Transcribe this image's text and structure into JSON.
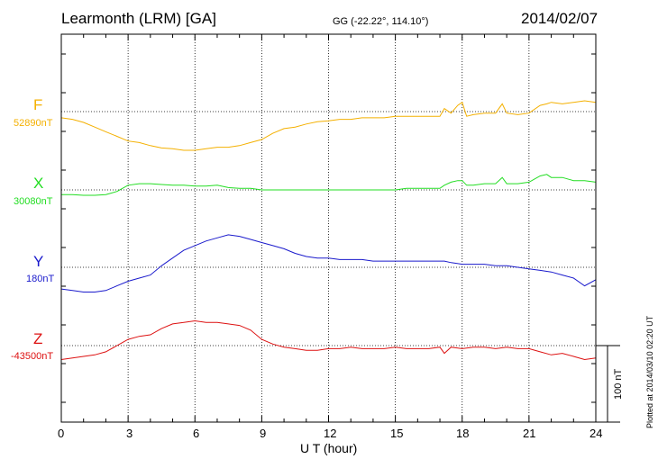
{
  "header": {
    "station": "Learmonth (LRM)  [GA]",
    "coords": "GG (-22.22°, 114.10°)",
    "date": "2014/02/07"
  },
  "footer": {
    "plotted": "Plotted at 2014/03/10 02:20 UT"
  },
  "colors": {
    "F": "#f4b000",
    "X": "#22dd22",
    "Y": "#1a1acc",
    "Z": "#dd1111",
    "axis": "#000000"
  },
  "chart_data": {
    "type": "line",
    "title": "Learmonth (LRM)  [GA]",
    "xlabel": "U T (hour)",
    "ylabel": "",
    "xlim": [
      0,
      24
    ],
    "x_ticks": [
      0,
      3,
      6,
      9,
      12,
      15,
      18,
      21,
      24
    ],
    "x_tick_labels": [
      "0",
      "3",
      "6",
      "9",
      "12",
      "15",
      "18",
      "21",
      "24"
    ],
    "grid": true,
    "scale_bar_nT": 100,
    "scale_label": "100 nT",
    "series": [
      {
        "name": "F",
        "baseline": "52890nT",
        "baseline_nT": 52890,
        "x": [
          0,
          0.5,
          1,
          1.5,
          2,
          2.5,
          3,
          3.5,
          4,
          4.5,
          5,
          5.5,
          6,
          6.5,
          7,
          7.5,
          8,
          8.5,
          9,
          9.5,
          10,
          10.5,
          11,
          11.5,
          12,
          12.5,
          13,
          13.5,
          14,
          14.5,
          15,
          15.5,
          16,
          16.5,
          17,
          17.2,
          17.5,
          17.8,
          18,
          18.2,
          18.5,
          19,
          19.5,
          19.8,
          20,
          20.5,
          21,
          21.5,
          21.8,
          22,
          22.5,
          23,
          23.5,
          24
        ],
        "y": [
          -8,
          -10,
          -14,
          -20,
          -26,
          -32,
          -38,
          -40,
          -44,
          -47,
          -48,
          -50,
          -50,
          -48,
          -46,
          -46,
          -44,
          -40,
          -36,
          -28,
          -22,
          -20,
          -16,
          -13,
          -12,
          -10,
          -10,
          -8,
          -8,
          -8,
          -6,
          -6,
          -6,
          -6,
          -6,
          4,
          -2,
          8,
          12,
          -6,
          -4,
          -2,
          -2,
          10,
          -2,
          -4,
          -2,
          8,
          10,
          12,
          10,
          12,
          14,
          12
        ]
      },
      {
        "name": "X",
        "baseline": "30080nT",
        "baseline_nT": 30080,
        "x": [
          0,
          0.5,
          1,
          1.5,
          2,
          2.5,
          3,
          3.5,
          4,
          4.5,
          5,
          5.5,
          6,
          6.5,
          7,
          7.5,
          8,
          8.5,
          9,
          9.5,
          10,
          10.5,
          11,
          11.5,
          12,
          12.5,
          13,
          13.5,
          14,
          14.5,
          15,
          15.5,
          16,
          16.5,
          17,
          17.2,
          17.5,
          17.8,
          18,
          18.2,
          18.5,
          19,
          19.5,
          19.8,
          20,
          20.5,
          21,
          21.5,
          21.8,
          22,
          22.5,
          23,
          23.5,
          24
        ],
        "y": [
          -6,
          -6,
          -7,
          -7,
          -6,
          -2,
          6,
          8,
          8,
          7,
          6,
          6,
          5,
          5,
          6,
          3,
          2,
          2,
          0,
          0,
          0,
          0,
          0,
          0,
          0,
          0,
          0,
          0,
          0,
          0,
          0,
          2,
          2,
          2,
          2,
          6,
          10,
          12,
          12,
          6,
          6,
          8,
          8,
          16,
          8,
          8,
          10,
          18,
          20,
          16,
          16,
          12,
          12,
          10
        ]
      },
      {
        "name": "Y",
        "baseline": "180nT",
        "baseline_nT": 180,
        "x": [
          0,
          0.5,
          1,
          1.5,
          2,
          2.5,
          3,
          3.5,
          4,
          4.5,
          5,
          5.5,
          6,
          6.5,
          7,
          7.5,
          8,
          8.5,
          9,
          9.5,
          10,
          10.5,
          11,
          11.5,
          12,
          12.5,
          13,
          13.5,
          14,
          14.5,
          15,
          15.5,
          16,
          16.5,
          17,
          17.2,
          17.5,
          18,
          18.5,
          19,
          19.5,
          20,
          20.5,
          21,
          21.5,
          22,
          22.5,
          23,
          23.5,
          24
        ],
        "y": [
          -28,
          -30,
          -32,
          -32,
          -30,
          -24,
          -18,
          -14,
          -10,
          2,
          12,
          22,
          28,
          34,
          38,
          42,
          40,
          36,
          32,
          28,
          24,
          18,
          14,
          12,
          12,
          10,
          10,
          10,
          8,
          8,
          8,
          8,
          8,
          8,
          8,
          8,
          6,
          4,
          4,
          4,
          2,
          2,
          0,
          -2,
          -4,
          -6,
          -10,
          -14,
          -24,
          -16
        ]
      },
      {
        "name": "Z",
        "baseline": "-43500nT",
        "baseline_nT": -43500,
        "x": [
          0,
          0.5,
          1,
          1.5,
          2,
          2.5,
          3,
          3.5,
          4,
          4.5,
          5,
          5.5,
          6,
          6.5,
          7,
          7.5,
          8,
          8.5,
          9,
          9.5,
          10,
          10.5,
          11,
          11.5,
          12,
          12.5,
          13,
          13.5,
          14,
          14.5,
          15,
          15.5,
          16,
          16.5,
          17,
          17.2,
          17.5,
          18,
          18.5,
          19,
          19.5,
          20,
          20.5,
          21,
          21.5,
          22,
          22.5,
          23,
          23.5,
          24
        ],
        "y": [
          -18,
          -16,
          -14,
          -12,
          -8,
          0,
          8,
          12,
          14,
          22,
          28,
          30,
          32,
          30,
          30,
          28,
          26,
          20,
          8,
          2,
          -2,
          -4,
          -6,
          -6,
          -4,
          -4,
          -2,
          -4,
          -4,
          -4,
          -2,
          -4,
          -4,
          -4,
          -2,
          -10,
          -2,
          -4,
          -2,
          -2,
          -4,
          -2,
          -4,
          -4,
          -8,
          -12,
          -10,
          -14,
          -18,
          -16
        ]
      }
    ]
  }
}
